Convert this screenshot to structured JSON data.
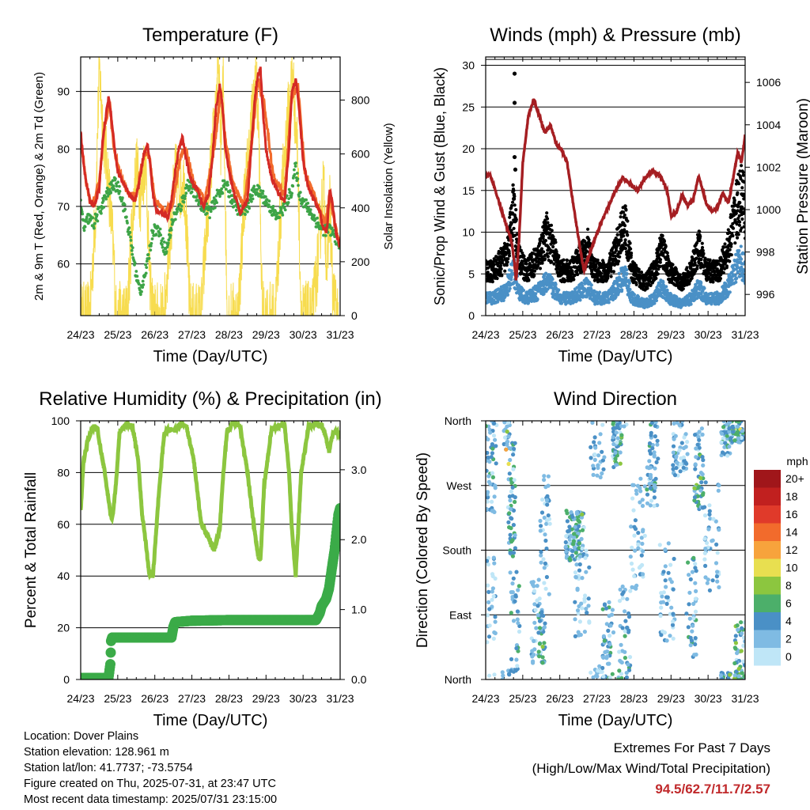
{
  "chart_data": [
    {
      "id": "temperature",
      "type": "line",
      "title": "Temperature (F)",
      "xlabel": "Time (Day/UTC)",
      "ylabel": "2m & 9m T (Red, Orange) & 2m Td (Green)",
      "y2label": "Solar Insolation (Yellow)",
      "x_ticks": [
        "24/23",
        "25/23",
        "26/23",
        "27/23",
        "28/23",
        "29/23",
        "30/23",
        "31/23"
      ],
      "xlim": [
        0,
        7
      ],
      "ylim": [
        51,
        96
      ],
      "y_ticks": [
        60,
        70,
        80,
        90
      ],
      "y2lim": [
        0,
        960
      ],
      "y2_ticks": [
        0,
        200,
        400,
        600,
        800
      ],
      "grid": "horizontal",
      "series": [
        {
          "key": "temp_2m",
          "color": "#d42a25",
          "x": [
            0,
            0.1,
            0.25,
            0.35,
            0.5,
            0.6,
            0.75,
            0.82,
            0.92,
            1.0,
            1.15,
            1.3,
            1.45,
            1.55,
            1.7,
            1.8,
            1.88,
            1.95,
            2.05,
            2.2,
            2.35,
            2.45,
            2.55,
            2.65,
            2.75,
            2.85,
            3.0,
            3.15,
            3.3,
            3.45,
            3.55,
            3.65,
            3.75,
            3.82,
            3.9,
            4.0,
            4.15,
            4.3,
            4.5,
            4.6,
            4.7,
            4.78,
            4.85,
            4.9,
            5.0,
            5.15,
            5.35,
            5.5,
            5.62,
            5.7,
            5.8,
            5.88,
            6.0,
            6.15,
            6.3,
            6.45,
            6.55,
            6.65,
            6.72,
            6.8,
            6.9,
            7.0
          ],
          "y": [
            83,
            76,
            71,
            70,
            73,
            82,
            89,
            86,
            80,
            76,
            74,
            72,
            71,
            73,
            79,
            81,
            77,
            72,
            69,
            69,
            68,
            71,
            76,
            80,
            82,
            78,
            74,
            73,
            70,
            72,
            78,
            87,
            91,
            88,
            80,
            76,
            72,
            69,
            71,
            80,
            89,
            93,
            94,
            88,
            80,
            75,
            72,
            71,
            80,
            90,
            92,
            88,
            78,
            73,
            71,
            69,
            66,
            66,
            73,
            70,
            65,
            63
          ]
        },
        {
          "key": "temp_9m",
          "color": "#f26b2c",
          "x": [
            0,
            0.15,
            0.3,
            0.5,
            0.65,
            0.78,
            0.9,
            1.05,
            1.3,
            1.5,
            1.7,
            1.85,
            2.0,
            2.3,
            2.5,
            2.7,
            2.85,
            3.05,
            3.35,
            3.6,
            3.78,
            3.9,
            4.1,
            4.4,
            4.6,
            4.78,
            4.95,
            5.2,
            5.5,
            5.7,
            5.86,
            6.05,
            6.35,
            6.6,
            6.72,
            6.85,
            7.0
          ],
          "y": [
            82,
            74,
            70,
            74,
            84,
            88,
            80,
            76,
            72,
            72,
            79,
            79,
            71,
            69,
            71,
            79,
            80,
            74,
            71,
            80,
            90,
            82,
            74,
            70,
            80,
            92,
            88,
            75,
            72,
            89,
            91,
            76,
            71,
            67,
            72,
            67,
            63
          ]
        },
        {
          "key": "dewpoint_2m",
          "color": "#3da447",
          "x": [
            0,
            0.1,
            0.2,
            0.35,
            0.5,
            0.7,
            0.9,
            1.05,
            1.2,
            1.35,
            1.5,
            1.6,
            1.8,
            1.95,
            2.1,
            2.3,
            2.5,
            2.7,
            2.9,
            3.1,
            3.3,
            3.5,
            3.7,
            3.9,
            4.1,
            4.3,
            4.5,
            4.7,
            4.9,
            5.1,
            5.3,
            5.5,
            5.7,
            5.8,
            5.9,
            6.1,
            6.3,
            6.5,
            6.7,
            6.85,
            7.0
          ],
          "y": [
            70,
            66,
            68,
            67,
            69,
            72,
            74,
            73,
            69,
            64,
            58,
            55,
            60,
            66,
            66,
            62,
            68,
            70,
            74,
            72,
            70,
            69,
            72,
            74,
            71,
            69,
            70,
            73,
            72,
            70,
            68,
            70,
            73,
            77,
            72,
            70,
            68,
            66,
            66,
            65,
            63
          ]
        },
        {
          "key": "solar",
          "color": "#f7dc4f",
          "axis": "y2",
          "x": [
            0,
            0.25,
            0.4,
            0.5,
            0.6,
            0.75,
            0.9,
            0.95,
            1.25,
            1.38,
            1.5,
            1.62,
            1.75,
            1.85,
            1.95,
            2.25,
            2.4,
            2.55,
            2.7,
            2.8,
            2.95,
            3.25,
            3.4,
            3.55,
            3.72,
            3.78,
            3.85,
            3.95,
            4.25,
            4.4,
            4.55,
            4.72,
            4.8,
            4.9,
            5.25,
            5.4,
            5.55,
            5.72,
            5.78,
            5.85,
            5.95,
            6.25,
            6.4,
            6.55,
            6.65,
            6.72,
            6.8,
            6.95
          ],
          "y": [
            0,
            0,
            380,
            920,
            700,
            500,
            200,
            0,
            0,
            320,
            560,
            430,
            600,
            180,
            0,
            0,
            280,
            520,
            480,
            500,
            0,
            0,
            340,
            610,
            920,
            650,
            880,
            0,
            0,
            410,
            620,
            900,
            700,
            0,
            0,
            400,
            680,
            910,
            750,
            620,
            0,
            0,
            200,
            500,
            150,
            420,
            80,
            0
          ]
        }
      ]
    },
    {
      "id": "winds",
      "type": "line",
      "title": "Winds (mph) & Pressure (mb)",
      "xlabel": "Time (Day/UTC)",
      "ylabel": "Sonic/Prop Wind & Gust (Blue, Black)",
      "y2label": "Station Pressure (Maroon)",
      "x_ticks": [
        "24/23",
        "25/23",
        "26/23",
        "27/23",
        "28/23",
        "29/23",
        "30/23",
        "31/23"
      ],
      "xlim": [
        0,
        7
      ],
      "ylim": [
        0,
        31
      ],
      "y_ticks": [
        0,
        5,
        10,
        15,
        20,
        25,
        30
      ],
      "y2lim": [
        995,
        1007.2
      ],
      "y2_ticks": [
        996,
        998,
        1000,
        1002,
        1004,
        1006
      ],
      "grid": "horizontal",
      "series": [
        {
          "key": "pressure",
          "color": "#a51e22",
          "axis": "y2",
          "x": [
            0,
            0.1,
            0.25,
            0.4,
            0.55,
            0.7,
            0.78,
            0.82,
            0.9,
            1.0,
            1.15,
            1.3,
            1.45,
            1.6,
            1.75,
            1.9,
            2.05,
            2.2,
            2.35,
            2.5,
            2.65,
            2.8,
            2.95,
            3.05,
            3.15,
            3.3,
            3.5,
            3.7,
            3.9,
            4.1,
            4.3,
            4.5,
            4.7,
            4.9,
            5.0,
            5.15,
            5.3,
            5.45,
            5.6,
            5.75,
            5.95,
            6.1,
            6.25,
            6.4,
            6.55,
            6.7,
            6.8,
            6.9,
            7.0
          ],
          "y": [
            1001.5,
            1001.7,
            1001.0,
            1000.1,
            999.3,
            998.5,
            997.4,
            996.6,
            998.6,
            1002.2,
            1004.4,
            1005.2,
            1004.4,
            1003.6,
            1004.0,
            1003.1,
            1002.8,
            1002.2,
            1000.4,
            998.7,
            997.1,
            997.9,
            998.6,
            999.1,
            999.5,
            1000.1,
            1000.9,
            1001.5,
            1001.2,
            1000.9,
            1001.5,
            1001.8,
            1001.6,
            1000.9,
            999.7,
            999.9,
            1000.7,
            1000.2,
            1000.5,
            1001.6,
            1000.3,
            999.9,
            1000.1,
            1000.8,
            1000.3,
            1001.7,
            1002.7,
            1002.2,
            1003.5
          ]
        }
      ]
    },
    {
      "id": "humidity",
      "type": "line",
      "title": "Relative Humidity (%) & Precipitation (in)",
      "xlabel": "Time (Day/UTC)",
      "ylabel": "Percent & Total Rainfall",
      "x_ticks": [
        "24/23",
        "25/23",
        "26/23",
        "27/23",
        "28/23",
        "29/23",
        "30/23",
        "31/23"
      ],
      "xlim": [
        0,
        7
      ],
      "ylim": [
        0,
        100
      ],
      "y_ticks": [
        0,
        20,
        40,
        60,
        80,
        100
      ],
      "y2lim": [
        0,
        3.7
      ],
      "y2_ticks": [
        "0.0",
        "1.0",
        "2.0",
        "3.0"
      ],
      "grid": "horizontal",
      "series": [
        {
          "key": "rh",
          "color": "#8cc63f",
          "x": [
            0,
            0.08,
            0.2,
            0.35,
            0.45,
            0.55,
            0.65,
            0.8,
            0.85,
            0.95,
            1.05,
            1.25,
            1.4,
            1.55,
            1.65,
            1.78,
            1.85,
            1.95,
            2.1,
            2.25,
            2.4,
            2.55,
            2.7,
            2.85,
            3.05,
            3.25,
            3.45,
            3.6,
            3.75,
            3.85,
            3.95,
            4.1,
            4.3,
            4.5,
            4.65,
            4.78,
            4.85,
            4.95,
            5.15,
            5.35,
            5.5,
            5.62,
            5.7,
            5.8,
            5.95,
            6.15,
            6.35,
            6.5,
            6.6,
            6.7,
            6.8,
            6.9,
            7.0
          ],
          "y": [
            65,
            85,
            93,
            98,
            97,
            88,
            80,
            64,
            62,
            75,
            96,
            99,
            98,
            85,
            65,
            50,
            40,
            40,
            70,
            95,
            97,
            96,
            99,
            98,
            85,
            60,
            55,
            50,
            58,
            80,
            96,
            99,
            98,
            80,
            62,
            48,
            46,
            75,
            97,
            98,
            99,
            80,
            58,
            40,
            80,
            98,
            99,
            98,
            95,
            88,
            95,
            96,
            95
          ]
        },
        {
          "key": "precip",
          "color": "#3bab48",
          "axis": "y2",
          "x": [
            0,
            0.35,
            0.75,
            0.8,
            0.82,
            0.85,
            1.0,
            1.5,
            2.0,
            2.45,
            2.5,
            2.55,
            3.0,
            4.0,
            5.0,
            6.0,
            6.35,
            6.45,
            6.5,
            6.62,
            6.7,
            6.78,
            6.85,
            6.9,
            6.95,
            7.0
          ],
          "y": [
            0.02,
            0.02,
            0.02,
            0.22,
            0.55,
            0.6,
            0.6,
            0.6,
            0.6,
            0.6,
            0.75,
            0.82,
            0.84,
            0.85,
            0.85,
            0.85,
            0.85,
            0.95,
            1.05,
            1.15,
            1.3,
            1.6,
            1.85,
            2.1,
            2.35,
            2.45
          ]
        }
      ]
    },
    {
      "id": "direction",
      "type": "scatter",
      "title": "Wind Direction",
      "xlabel": "Time (Day/UTC)",
      "ylabel": "Direction (Colored By Speed)",
      "x_ticks": [
        "24/23",
        "25/23",
        "26/23",
        "27/23",
        "28/23",
        "29/23",
        "30/23",
        "31/23"
      ],
      "xlim": [
        0,
        7
      ],
      "ylim": [
        0,
        360
      ],
      "y_tick_labels": [
        "North",
        "East",
        "South",
        "West",
        "North"
      ],
      "y_tick_values": [
        0,
        90,
        180,
        270,
        360
      ],
      "grid": "horizontal",
      "legend": {
        "title": "mph",
        "labels": [
          "0",
          "2",
          "4",
          "6",
          "8",
          "10",
          "12",
          "14",
          "16",
          "18",
          "20+"
        ],
        "colors": [
          "#bfe6f7",
          "#7fbbe3",
          "#4a90c6",
          "#4caf6a",
          "#8cc63f",
          "#e8df50",
          "#f7a33c",
          "#f26b2c",
          "#e03a2a",
          "#c1201f",
          "#a0161a"
        ]
      }
    }
  ],
  "info": {
    "location": "Location: Dover Plains",
    "elevation": "Station elevation: 128.961 m",
    "latlon": "Station lat/lon: 41.7737; -73.5754",
    "created": "Figure created on Thu, 2025-07-31, at 23:47 UTC",
    "recent": "Most recent data timestamp: 2025/07/31 23:15:00"
  },
  "extremes": {
    "title": "Extremes For Past 7 Days",
    "subtitle": "(High/Low/Max Wind/Total Precipitation)",
    "values": "94.5/62.7/11.7/2.57"
  }
}
